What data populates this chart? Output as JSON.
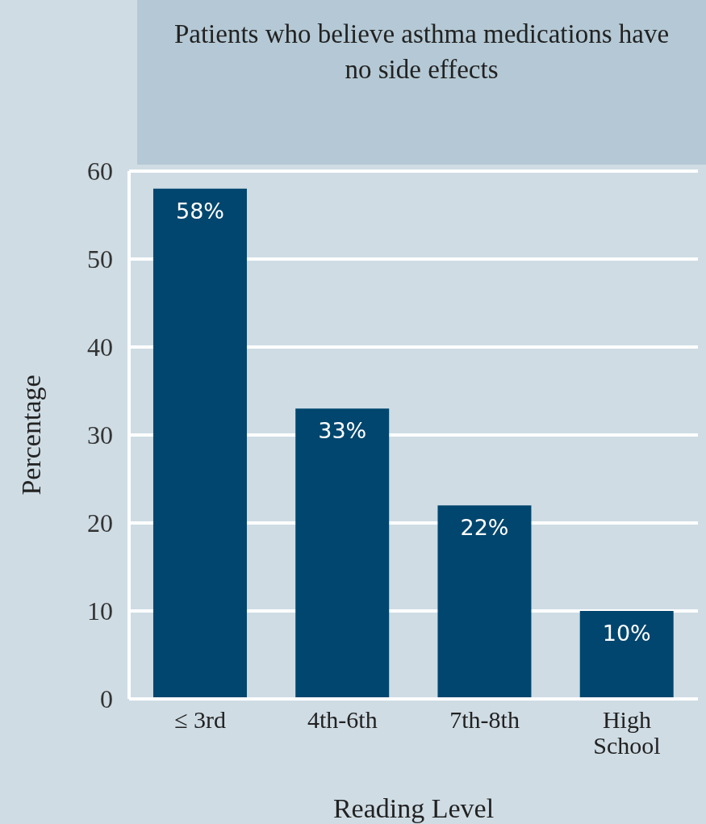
{
  "chart_data": {
    "type": "bar",
    "title": "Patients who believe asthma medications have no side effects",
    "xlabel": "Reading Level",
    "ylabel": "Percentage",
    "categories": [
      "≤ 3rd",
      "4th-6th",
      "7th-8th",
      "High School"
    ],
    "values": [
      58,
      33,
      22,
      10
    ],
    "value_labels": [
      "58%",
      "33%",
      "22%",
      "10%"
    ],
    "color": "#00466e",
    "ylim": [
      0,
      60
    ],
    "yticks": [
      0,
      10,
      20,
      30,
      40,
      50,
      60
    ],
    "grid": "y"
  }
}
